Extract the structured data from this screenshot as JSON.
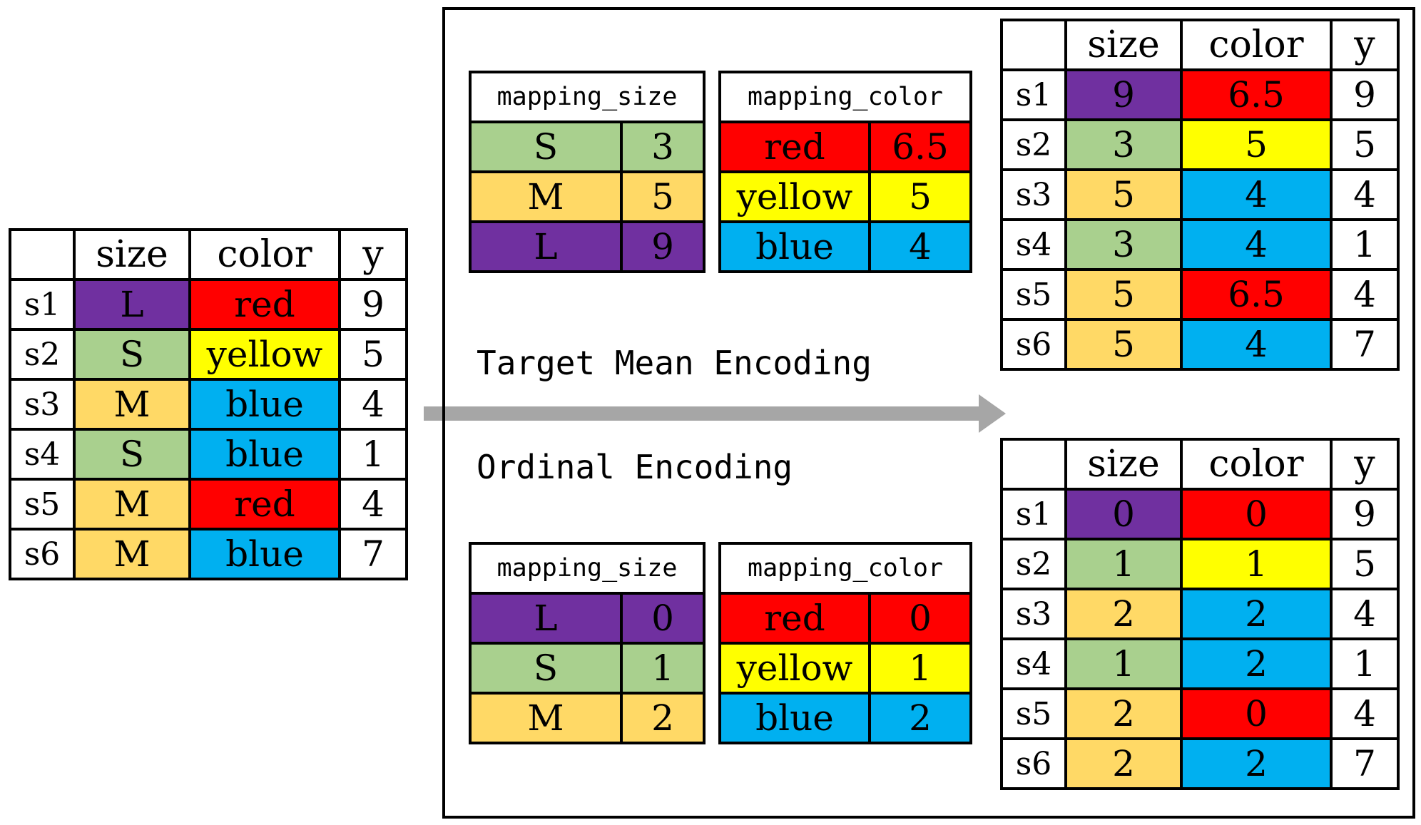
{
  "colors": {
    "L": "#7030a0",
    "S": "#a9d08e",
    "M": "#ffd966",
    "red": "#ff0000",
    "yellow": "#ffff00",
    "blue": "#00b0f0",
    "arrow": "#a6a6a6"
  },
  "input_table": {
    "headers": [
      "",
      "size",
      "color",
      "y"
    ],
    "rows": [
      [
        "s1",
        "L",
        "red",
        "9"
      ],
      [
        "s2",
        "S",
        "yellow",
        "5"
      ],
      [
        "s3",
        "M",
        "blue",
        "4"
      ],
      [
        "s4",
        "S",
        "blue",
        "1"
      ],
      [
        "s5",
        "M",
        "red",
        "4"
      ],
      [
        "s6",
        "M",
        "blue",
        "7"
      ]
    ]
  },
  "target_mean": {
    "label": "Target Mean Encoding",
    "mapping_size": {
      "title": "mapping_size",
      "rows": [
        [
          "S",
          "3"
        ],
        [
          "M",
          "5"
        ],
        [
          "L",
          "9"
        ]
      ]
    },
    "mapping_color": {
      "title": "mapping_color",
      "rows": [
        [
          "red",
          "6.5"
        ],
        [
          "yellow",
          "5"
        ],
        [
          "blue",
          "4"
        ]
      ]
    },
    "result": {
      "headers": [
        "",
        "size",
        "color",
        "y"
      ],
      "rows": [
        [
          "s1",
          "9",
          "6.5",
          "9"
        ],
        [
          "s2",
          "3",
          "5",
          "5"
        ],
        [
          "s3",
          "5",
          "4",
          "4"
        ],
        [
          "s4",
          "3",
          "4",
          "1"
        ],
        [
          "s5",
          "5",
          "6.5",
          "4"
        ],
        [
          "s6",
          "5",
          "4",
          "7"
        ]
      ]
    }
  },
  "ordinal": {
    "label": "Ordinal Encoding",
    "mapping_size": {
      "title": "mapping_size",
      "rows": [
        [
          "L",
          "0"
        ],
        [
          "S",
          "1"
        ],
        [
          "M",
          "2"
        ]
      ]
    },
    "mapping_color": {
      "title": "mapping_color",
      "rows": [
        [
          "red",
          "0"
        ],
        [
          "yellow",
          "1"
        ],
        [
          "blue",
          "2"
        ]
      ]
    },
    "result": {
      "headers": [
        "",
        "size",
        "color",
        "y"
      ],
      "rows": [
        [
          "s1",
          "0",
          "0",
          "9"
        ],
        [
          "s2",
          "1",
          "1",
          "5"
        ],
        [
          "s3",
          "2",
          "2",
          "4"
        ],
        [
          "s4",
          "1",
          "2",
          "1"
        ],
        [
          "s5",
          "2",
          "0",
          "4"
        ],
        [
          "s6",
          "2",
          "2",
          "7"
        ]
      ]
    }
  }
}
